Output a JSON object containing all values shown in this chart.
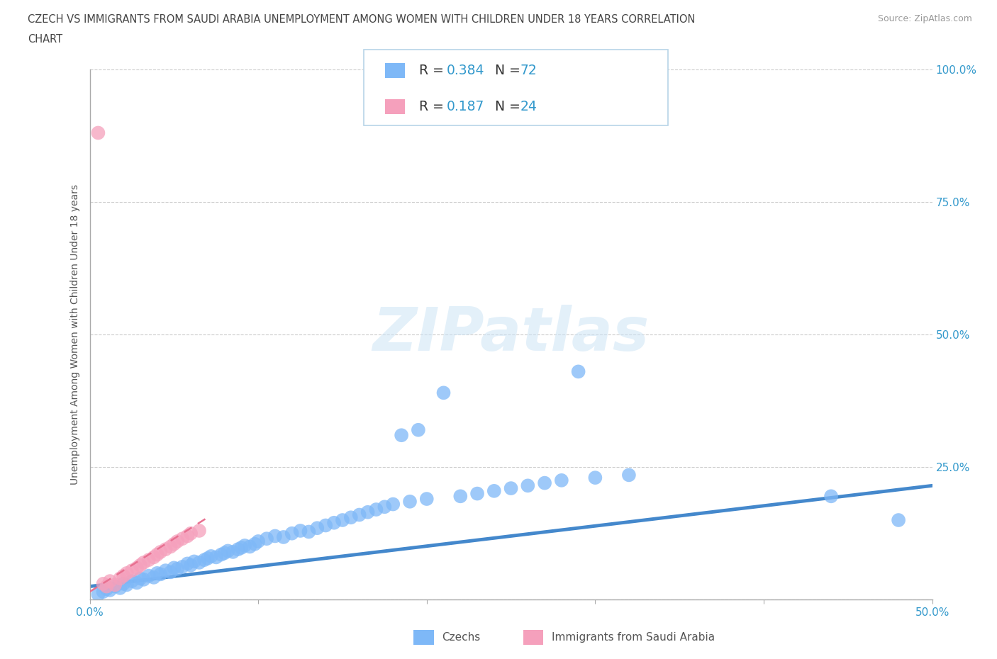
{
  "title_line1": "CZECH VS IMMIGRANTS FROM SAUDI ARABIA UNEMPLOYMENT AMONG WOMEN WITH CHILDREN UNDER 18 YEARS CORRELATION",
  "title_line2": "CHART",
  "source": "Source: ZipAtlas.com",
  "ylabel": "Unemployment Among Women with Children Under 18 years",
  "xlim": [
    0.0,
    0.5
  ],
  "ylim": [
    0.0,
    1.0
  ],
  "czech_color": "#7eb8f7",
  "saudi_color": "#f5a0bc",
  "czech_R": "0.384",
  "czech_N": "72",
  "saudi_R": "0.187",
  "saudi_N": "24",
  "legend_label_czech": "Czechs",
  "legend_label_saudi": "Immigrants from Saudi Arabia",
  "watermark": "ZIPatlas",
  "background_color": "#ffffff",
  "label_color": "#3399cc",
  "grid_color": "#e8e8e8",
  "czech_scatter_x": [
    0.005,
    0.008,
    0.01,
    0.012,
    0.015,
    0.018,
    0.02,
    0.022,
    0.025,
    0.028,
    0.03,
    0.032,
    0.035,
    0.038,
    0.04,
    0.042,
    0.045,
    0.048,
    0.05,
    0.052,
    0.055,
    0.058,
    0.06,
    0.062,
    0.065,
    0.068,
    0.07,
    0.072,
    0.075,
    0.078,
    0.08,
    0.082,
    0.085,
    0.088,
    0.09,
    0.092,
    0.095,
    0.098,
    0.1,
    0.105,
    0.11,
    0.115,
    0.12,
    0.125,
    0.13,
    0.135,
    0.14,
    0.145,
    0.15,
    0.155,
    0.16,
    0.165,
    0.17,
    0.175,
    0.18,
    0.185,
    0.19,
    0.195,
    0.2,
    0.21,
    0.22,
    0.23,
    0.24,
    0.25,
    0.26,
    0.27,
    0.28,
    0.29,
    0.3,
    0.32,
    0.44,
    0.48
  ],
  "czech_scatter_y": [
    0.01,
    0.015,
    0.02,
    0.018,
    0.025,
    0.022,
    0.03,
    0.028,
    0.035,
    0.032,
    0.04,
    0.038,
    0.045,
    0.042,
    0.05,
    0.048,
    0.055,
    0.052,
    0.06,
    0.058,
    0.062,
    0.068,
    0.065,
    0.072,
    0.07,
    0.075,
    0.078,
    0.082,
    0.08,
    0.085,
    0.088,
    0.092,
    0.09,
    0.095,
    0.098,
    0.102,
    0.1,
    0.105,
    0.11,
    0.115,
    0.12,
    0.118,
    0.125,
    0.13,
    0.128,
    0.135,
    0.14,
    0.145,
    0.15,
    0.155,
    0.16,
    0.165,
    0.17,
    0.175,
    0.18,
    0.31,
    0.185,
    0.32,
    0.19,
    0.39,
    0.195,
    0.2,
    0.205,
    0.21,
    0.215,
    0.22,
    0.225,
    0.43,
    0.23,
    0.235,
    0.195,
    0.15
  ],
  "saudi_scatter_x": [
    0.005,
    0.008,
    0.01,
    0.012,
    0.015,
    0.018,
    0.02,
    0.022,
    0.025,
    0.028,
    0.03,
    0.032,
    0.035,
    0.038,
    0.04,
    0.042,
    0.045,
    0.048,
    0.05,
    0.052,
    0.055,
    0.058,
    0.06,
    0.065
  ],
  "saudi_scatter_y": [
    0.88,
    0.03,
    0.025,
    0.035,
    0.028,
    0.04,
    0.045,
    0.05,
    0.055,
    0.06,
    0.065,
    0.07,
    0.075,
    0.08,
    0.085,
    0.09,
    0.095,
    0.1,
    0.105,
    0.11,
    0.115,
    0.12,
    0.125,
    0.13
  ],
  "czech_trend_x": [
    0.0,
    0.5
  ],
  "czech_trend_y": [
    0.025,
    0.215
  ],
  "saudi_trend_x": [
    0.0,
    0.07
  ],
  "saudi_trend_y": [
    0.015,
    0.155
  ]
}
